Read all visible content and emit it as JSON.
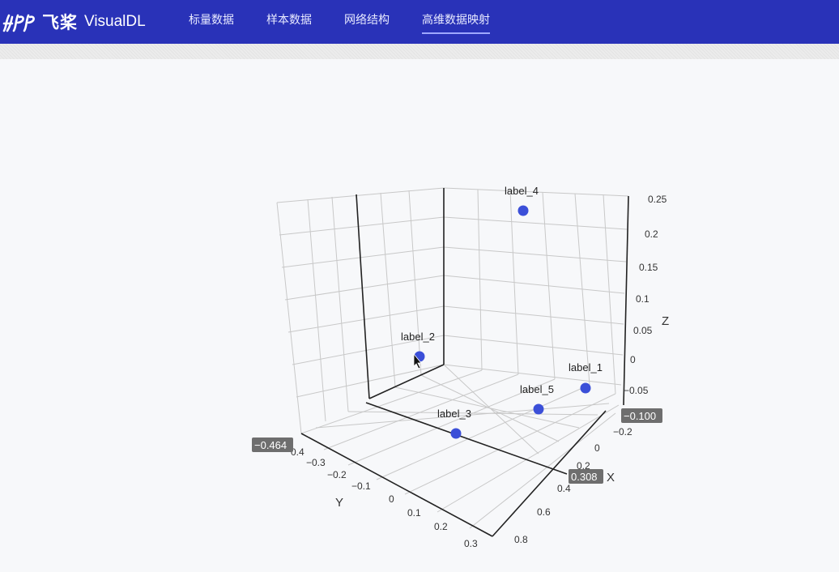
{
  "app": {
    "brand_cn": "飞桨",
    "brand_en": "VisualDL"
  },
  "nav": {
    "items": [
      {
        "label": "标量数据"
      },
      {
        "label": "样本数据"
      },
      {
        "label": "网络结构"
      },
      {
        "label": "高维数据映射",
        "active": true
      }
    ]
  },
  "colors": {
    "header": "#2932b8",
    "point": "#3b4fd8"
  },
  "plot": {
    "axes": {
      "x_name": "X",
      "y_name": "Y",
      "z_name": "Z",
      "x_ticks": [
        "−0.2",
        "0",
        "0.2",
        "0.4",
        "0.6",
        "0.8"
      ],
      "y_ticks": [
        "0.4",
        "−0.3",
        "−0.2",
        "−0.1",
        "0",
        "0.1",
        "0.2",
        "0.3"
      ],
      "z_ticks": [
        "0.25",
        "0.2",
        "0.15",
        "0.1",
        "0.05",
        "0",
        "−0.05",
        "−0.100"
      ]
    },
    "pointer_badges": {
      "y": "−0.464",
      "x": "0.308",
      "z": "−0.100"
    },
    "points": [
      {
        "label": "label_1"
      },
      {
        "label": "label_2"
      },
      {
        "label": "label_3"
      },
      {
        "label": "label_4"
      },
      {
        "label": "label_5"
      }
    ]
  }
}
